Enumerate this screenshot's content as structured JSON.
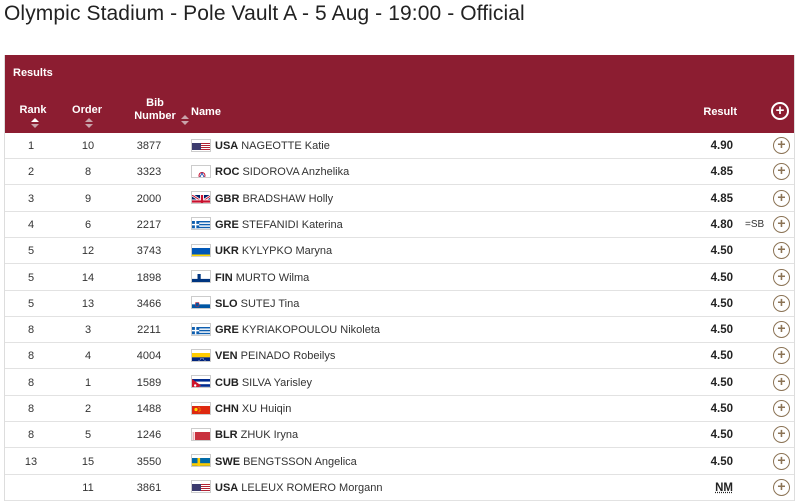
{
  "title": "Olympic Stadium - Pole Vault A - 5 Aug - 19:00 - Official",
  "table": {
    "section_label": "Results",
    "headers": {
      "rank": "Rank",
      "order": "Order",
      "bib": "Bib\nNumber",
      "name": "Name",
      "result": "Result"
    },
    "colors": {
      "header_bg": "#8c1d31",
      "icon": "#8b7355"
    },
    "rows": [
      {
        "rank": "1",
        "order": "10",
        "bib": "3877",
        "noc": "USA",
        "name": "NAGEOTTE Katie",
        "result": "4.90",
        "record": "",
        "flag": "usa"
      },
      {
        "rank": "2",
        "order": "8",
        "bib": "3323",
        "noc": "ROC",
        "name": "SIDOROVA Anzhelika",
        "result": "4.85",
        "record": "",
        "flag": "roc"
      },
      {
        "rank": "3",
        "order": "9",
        "bib": "2000",
        "noc": "GBR",
        "name": "BRADSHAW Holly",
        "result": "4.85",
        "record": "",
        "flag": "gbr"
      },
      {
        "rank": "4",
        "order": "6",
        "bib": "2217",
        "noc": "GRE",
        "name": "STEFANIDI Katerina",
        "result": "4.80",
        "record": "=SB",
        "flag": "gre"
      },
      {
        "rank": "5",
        "order": "12",
        "bib": "3743",
        "noc": "UKR",
        "name": "KYLYPKO Maryna",
        "result": "4.50",
        "record": "",
        "flag": "ukr"
      },
      {
        "rank": "5",
        "order": "14",
        "bib": "1898",
        "noc": "FIN",
        "name": "MURTO Wilma",
        "result": "4.50",
        "record": "",
        "flag": "fin"
      },
      {
        "rank": "5",
        "order": "13",
        "bib": "3466",
        "noc": "SLO",
        "name": "SUTEJ Tina",
        "result": "4.50",
        "record": "",
        "flag": "slo"
      },
      {
        "rank": "8",
        "order": "3",
        "bib": "2211",
        "noc": "GRE",
        "name": "KYRIAKOPOULOU Nikoleta",
        "result": "4.50",
        "record": "",
        "flag": "gre"
      },
      {
        "rank": "8",
        "order": "4",
        "bib": "4004",
        "noc": "VEN",
        "name": "PEINADO Robeilys",
        "result": "4.50",
        "record": "",
        "flag": "ven"
      },
      {
        "rank": "8",
        "order": "1",
        "bib": "1589",
        "noc": "CUB",
        "name": "SILVA Yarisley",
        "result": "4.50",
        "record": "",
        "flag": "cub"
      },
      {
        "rank": "8",
        "order": "2",
        "bib": "1488",
        "noc": "CHN",
        "name": "XU Huiqin",
        "result": "4.50",
        "record": "",
        "flag": "chn"
      },
      {
        "rank": "8",
        "order": "5",
        "bib": "1246",
        "noc": "BLR",
        "name": "ZHUK Iryna",
        "result": "4.50",
        "record": "",
        "flag": "blr"
      },
      {
        "rank": "13",
        "order": "15",
        "bib": "3550",
        "noc": "SWE",
        "name": "BENGTSSON Angelica",
        "result": "4.50",
        "record": "",
        "flag": "swe"
      },
      {
        "rank": "",
        "order": "11",
        "bib": "3861",
        "noc": "USA",
        "name": "LELEUX ROMERO Morgann",
        "result": "NM",
        "record": "",
        "flag": "usa"
      }
    ]
  }
}
